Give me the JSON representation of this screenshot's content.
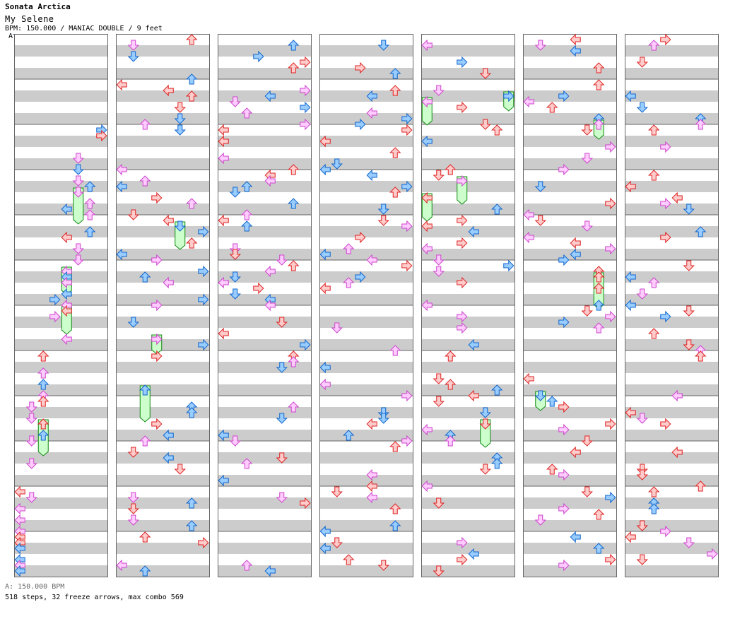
{
  "header": {
    "artist": "Sonata Arctica",
    "title": "My Selene",
    "info": "BPM: 150.000 / MANIAC DOUBLE / 9 feet"
  },
  "marker": {
    "label": "A"
  },
  "footer": {
    "bpm_line": "A: 150.000 BPM",
    "stats": "518 steps, 32 freeze arrows, max combo 569"
  },
  "colors": {
    "stripe": "#cccccc",
    "panel_border": "#666666",
    "red_fill": "#ffcccc",
    "red_stroke": "#dd2222",
    "blue_fill": "#99ccff",
    "blue_stroke": "#1166cc",
    "pink_fill": "#ffccff",
    "pink_stroke": "#cc44cc",
    "freeze_fill": "#ccffcc",
    "freeze_stroke": "#118811"
  },
  "chart_data": {
    "type": "step_chart",
    "mode": "MANIAC DOUBLE",
    "difficulty_feet": 9,
    "bpm": 150.0,
    "columns": 7,
    "measures_per_column": 12,
    "lanes": 8,
    "steps": 518,
    "freeze_arrows": 32,
    "max_combo": 569
  }
}
